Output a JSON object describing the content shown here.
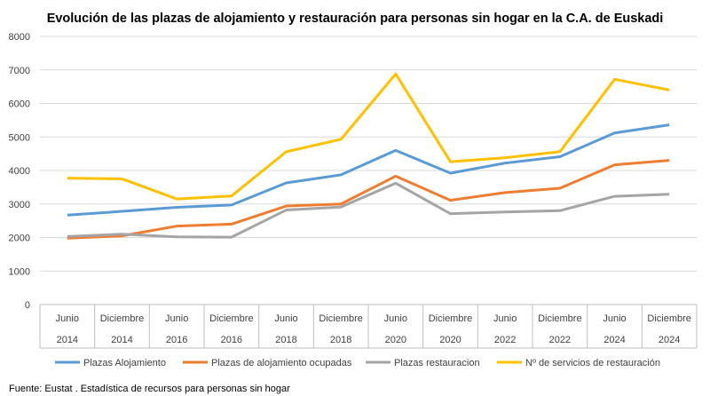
{
  "chart_data": {
    "type": "line",
    "title": "Evolución de las plazas de alojamiento y restauración para personas sin hogar en la C.A. de Euskadi",
    "categories": [
      [
        "Junio",
        "2014"
      ],
      [
        "Diciembre",
        "2014"
      ],
      [
        "Junio",
        "2016"
      ],
      [
        "Diciembre",
        "2016"
      ],
      [
        "Junio",
        "2018"
      ],
      [
        "Diciembre",
        "2018"
      ],
      [
        "Junio",
        "2020"
      ],
      [
        "Diciembre",
        "2020"
      ],
      [
        "Junio",
        "2022"
      ],
      [
        "Diciembre",
        "2022"
      ],
      [
        "Junio",
        "2024"
      ],
      [
        "Diciembre",
        "2024"
      ]
    ],
    "ylim": [
      0,
      8000
    ],
    "yticks": [
      0,
      1000,
      2000,
      3000,
      4000,
      5000,
      6000,
      7000,
      8000
    ],
    "grid": true,
    "legend_position": "bottom",
    "series": [
      {
        "name": "Plazas Alojamiento",
        "color": "#5B9BD5",
        "values": [
          2670,
          2780,
          2900,
          2970,
          3630,
          3870,
          4600,
          3920,
          4220,
          4410,
          5120,
          5360
        ]
      },
      {
        "name": "Plazas de alojamiento ocupadas",
        "color": "#ED7D31",
        "values": [
          1980,
          2050,
          2340,
          2400,
          2940,
          3000,
          3830,
          3110,
          3340,
          3470,
          4170,
          4300
        ]
      },
      {
        "name": "Plazas restauracion",
        "color": "#A5A5A5",
        "values": [
          2030,
          2100,
          2020,
          2010,
          2820,
          2910,
          3620,
          2710,
          2760,
          2800,
          3230,
          3290
        ]
      },
      {
        "name": "Nº de servicios de restauración",
        "color": "#FFC000",
        "values": [
          3770,
          3750,
          3150,
          3240,
          4560,
          4930,
          6880,
          4260,
          4380,
          4560,
          6720,
          6400
        ]
      }
    ]
  },
  "source": "Fuente: Eustat . Estadística de recursos para personas sin hogar"
}
